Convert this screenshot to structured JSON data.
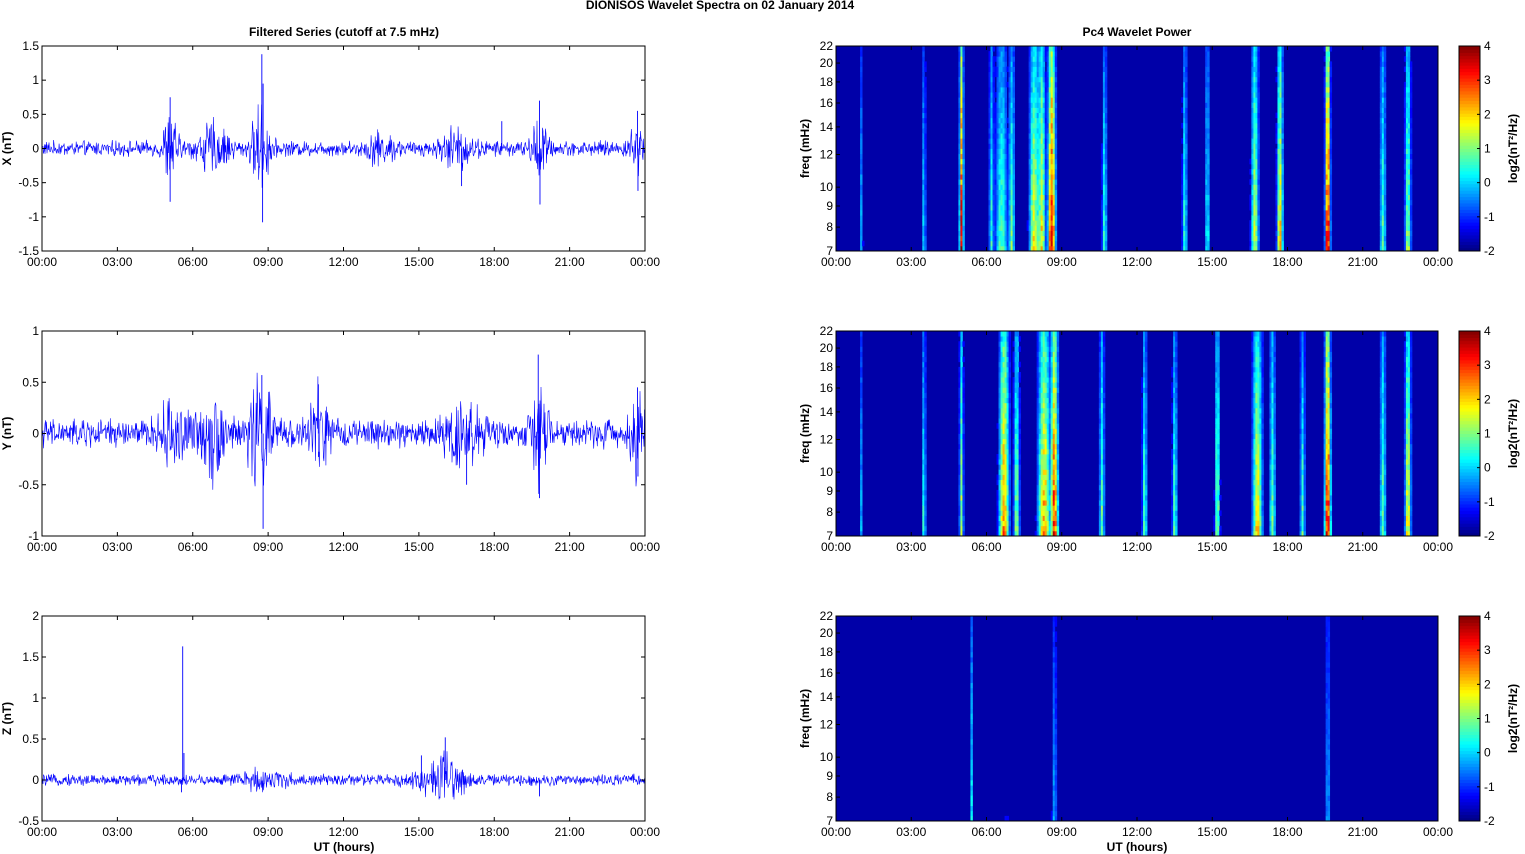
{
  "figure": {
    "title": "DIONISOS Wavelet Spectra on 02 January   2014",
    "left_title": "Filtered Series (cutoff at 7.5 mHz)",
    "right_title": "Pc4 Wavelet Power",
    "xlabel": "UT (hours)",
    "freq_label": "freq (mHz)",
    "colorbar_label": "log2(nT²/Hz)"
  },
  "chart_data": [
    {
      "type": "line",
      "panel": "X",
      "ylabel": "X (nT)",
      "xlim_hours": [
        0,
        24
      ],
      "ylim": [
        -1.5,
        1.5
      ],
      "yticks": [
        "-1.5",
        "-1",
        "-0.5",
        "0",
        "0.5",
        "1",
        "1.5"
      ],
      "xticks": [
        "00:00",
        "03:00",
        "06:00",
        "09:00",
        "12:00",
        "15:00",
        "18:00",
        "21:00",
        "00:00"
      ],
      "series": [
        {
          "color": "#0000ff",
          "baseline_amplitude": 0.08,
          "bursts": [
            [
              5.1,
              0.3,
              0.35
            ],
            [
              6.8,
              0.6,
              0.25
            ],
            [
              8.7,
              0.35,
              0.45
            ],
            [
              13.5,
              0.5,
              0.15
            ],
            [
              16.5,
              0.6,
              0.2
            ],
            [
              19.8,
              0.3,
              0.3
            ],
            [
              23.7,
              0.3,
              0.25
            ]
          ],
          "spikes": [
            [
              5.1,
              0.75
            ],
            [
              5.1,
              -0.78
            ],
            [
              8.75,
              1.38
            ],
            [
              8.78,
              -1.08
            ],
            [
              8.8,
              0.95
            ],
            [
              16.7,
              -0.55
            ],
            [
              19.8,
              0.7
            ],
            [
              19.82,
              -0.82
            ],
            [
              23.7,
              0.55
            ],
            [
              23.72,
              -0.62
            ],
            [
              18.3,
              0.4
            ]
          ]
        }
      ]
    },
    {
      "type": "line",
      "panel": "Y",
      "ylabel": "Y (nT)",
      "xlim_hours": [
        0,
        24
      ],
      "ylim": [
        -1,
        1
      ],
      "yticks": [
        "-1",
        "-0.5",
        "0",
        "0.5",
        "1"
      ],
      "xticks": [
        "00:00",
        "03:00",
        "06:00",
        "09:00",
        "12:00",
        "15:00",
        "18:00",
        "21:00",
        "00:00"
      ],
      "series": [
        {
          "color": "#0000ff",
          "baseline_amplitude": 0.1,
          "bursts": [
            [
              5.3,
              0.6,
              0.2
            ],
            [
              6.8,
              0.5,
              0.25
            ],
            [
              8.7,
              0.5,
              0.35
            ],
            [
              11.0,
              0.35,
              0.3
            ],
            [
              16.8,
              0.7,
              0.22
            ],
            [
              19.8,
              0.3,
              0.3
            ],
            [
              23.7,
              0.3,
              0.25
            ]
          ],
          "spikes": [
            [
              8.75,
              0.57
            ],
            [
              8.8,
              -0.93
            ],
            [
              19.75,
              0.77
            ],
            [
              19.8,
              -0.63
            ],
            [
              16.9,
              -0.5
            ],
            [
              23.7,
              0.45
            ],
            [
              23.72,
              -0.42
            ],
            [
              11.0,
              0.48
            ]
          ]
        }
      ]
    },
    {
      "type": "line",
      "panel": "Z",
      "ylabel": "Z (nT)",
      "xlim_hours": [
        0,
        24
      ],
      "ylim": [
        -0.5,
        2
      ],
      "yticks": [
        "-0.5",
        "0",
        "0.5",
        "1",
        "1.5",
        "2"
      ],
      "xticks": [
        "00:00",
        "03:00",
        "06:00",
        "09:00",
        "12:00",
        "15:00",
        "18:00",
        "21:00",
        "00:00"
      ],
      "series": [
        {
          "color": "#0000ff",
          "baseline_amplitude": 0.05,
          "bursts": [
            [
              8.8,
              0.8,
              0.08
            ],
            [
              15.7,
              1.0,
              0.1
            ],
            [
              16.2,
              0.5,
              0.15
            ]
          ],
          "spikes": [
            [
              5.6,
              1.63
            ],
            [
              5.65,
              0.33
            ],
            [
              5.55,
              -0.15
            ],
            [
              16.05,
              0.52
            ],
            [
              15.1,
              0.3
            ],
            [
              19.8,
              -0.2
            ]
          ]
        }
      ]
    },
    {
      "type": "heatmap",
      "panel": "X",
      "ylabel": "freq (mHz)",
      "yticks": [
        "7",
        "8",
        "9",
        "10",
        "12",
        "14",
        "16",
        "18",
        "20",
        "22"
      ],
      "ylim_mhz": [
        7,
        22
      ],
      "y_scale": "log",
      "xticks": [
        "00:00",
        "03:00",
        "06:00",
        "09:00",
        "12:00",
        "15:00",
        "18:00",
        "21:00",
        "00:00"
      ],
      "color_range": [
        -2,
        4
      ],
      "colorbar_ticks": [
        "-2",
        "-1",
        "0",
        "1",
        "2",
        "3",
        "4"
      ],
      "background_level": -2,
      "events": [
        [
          5.0,
          3.4,
          0.08
        ],
        [
          6.6,
          0.8,
          0.25
        ],
        [
          7.0,
          1.0,
          0.12
        ],
        [
          7.9,
          1.8,
          0.2
        ],
        [
          8.2,
          2.0,
          0.15
        ],
        [
          8.6,
          3.6,
          0.15
        ],
        [
          8.0,
          1.2,
          0.1
        ],
        [
          10.7,
          0.6,
          0.1
        ],
        [
          16.7,
          1.6,
          0.15
        ],
        [
          17.7,
          2.2,
          0.12
        ],
        [
          19.6,
          3.8,
          0.1
        ],
        [
          21.8,
          0.8,
          0.12
        ],
        [
          22.8,
          1.4,
          0.12
        ],
        [
          3.5,
          0.2,
          0.08
        ],
        [
          1.0,
          -0.2,
          0.08
        ],
        [
          13.9,
          0.6,
          0.1
        ],
        [
          14.8,
          0.4,
          0.1
        ],
        [
          6.2,
          0.6,
          0.1
        ]
      ]
    },
    {
      "type": "heatmap",
      "panel": "Y",
      "ylabel": "freq (mHz)",
      "yticks": [
        "7",
        "8",
        "9",
        "10",
        "12",
        "14",
        "16",
        "18",
        "20",
        "22"
      ],
      "ylim_mhz": [
        7,
        22
      ],
      "y_scale": "log",
      "xticks": [
        "00:00",
        "03:00",
        "06:00",
        "09:00",
        "12:00",
        "15:00",
        "18:00",
        "21:00",
        "00:00"
      ],
      "color_range": [
        -2,
        4
      ],
      "colorbar_ticks": [
        "-2",
        "-1",
        "0",
        "1",
        "2",
        "3",
        "4"
      ],
      "background_level": -2,
      "events": [
        [
          5.0,
          1.4,
          0.08
        ],
        [
          6.7,
          2.6,
          0.2
        ],
        [
          7.2,
          1.2,
          0.12
        ],
        [
          8.3,
          2.4,
          0.25
        ],
        [
          8.7,
          3.2,
          0.15
        ],
        [
          10.6,
          1.0,
          0.1
        ],
        [
          12.3,
          0.8,
          0.1
        ],
        [
          13.5,
          0.8,
          0.1
        ],
        [
          15.2,
          1.2,
          0.1
        ],
        [
          16.8,
          2.0,
          0.2
        ],
        [
          17.4,
          1.0,
          0.12
        ],
        [
          19.6,
          3.6,
          0.12
        ],
        [
          21.8,
          1.0,
          0.12
        ],
        [
          22.8,
          2.0,
          0.12
        ],
        [
          3.5,
          0.6,
          0.08
        ],
        [
          1.0,
          -0.2,
          0.08
        ],
        [
          18.6,
          0.8,
          0.1
        ]
      ]
    },
    {
      "type": "heatmap",
      "panel": "Z",
      "ylabel": "freq (mHz)",
      "yticks": [
        "7",
        "8",
        "9",
        "10",
        "12",
        "14",
        "16",
        "18",
        "20",
        "22"
      ],
      "ylim_mhz": [
        7,
        22
      ],
      "y_scale": "log",
      "xticks": [
        "00:00",
        "03:00",
        "06:00",
        "09:00",
        "12:00",
        "15:00",
        "18:00",
        "21:00",
        "00:00"
      ],
      "color_range": [
        -2,
        4
      ],
      "colorbar_ticks": [
        "-2",
        "-1",
        "0",
        "1",
        "2",
        "3",
        "4"
      ],
      "background_level": -2,
      "events": [
        [
          5.4,
          0.2,
          0.06
        ],
        [
          8.7,
          -0.2,
          0.1
        ],
        [
          19.6,
          -0.2,
          0.1
        ],
        [
          6.8,
          -1.2,
          0.1
        ],
        [
          11.0,
          -1.4,
          0.1
        ],
        [
          16.8,
          -1.4,
          0.1
        ]
      ]
    }
  ]
}
